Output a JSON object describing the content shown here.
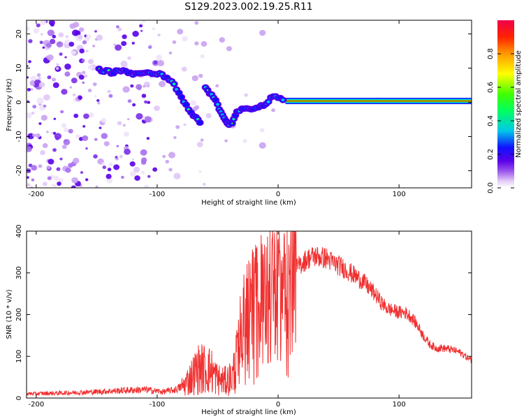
{
  "title": "S129.2023.002.19.25.R11",
  "chart_data": [
    {
      "type": "heatmap",
      "xlabel": "Height of straight line (km)",
      "ylabel": "Frequency (Hz)",
      "xlim": [
        -208,
        160
      ],
      "ylim": [
        -25,
        24
      ],
      "xticks": [
        -200,
        -100,
        0,
        100
      ],
      "yticks": [
        -20,
        -10,
        0,
        10,
        20
      ],
      "colorbar": {
        "label": "Normalized spectral amplitude",
        "range": [
          0,
          1
        ],
        "ticks": [
          0.0,
          0.2,
          0.4,
          0.6,
          0.8
        ],
        "colormap": [
          "#ffffff",
          "#d9b8f6",
          "#9b55ec",
          "#5a00e8",
          "#1010ff",
          "#00c8e8",
          "#00ff60",
          "#40ff00",
          "#ffff00",
          "#ff9900",
          "#ff2200",
          "#f0004a"
        ]
      },
      "ridge": [
        {
          "x": -148,
          "y": 9.6
        },
        {
          "x": -138,
          "y": 8.8
        },
        {
          "x": -128,
          "y": 9.2
        },
        {
          "x": -118,
          "y": 8.2
        },
        {
          "x": -108,
          "y": 8.6
        },
        {
          "x": -98,
          "y": 8.3
        },
        {
          "x": -92,
          "y": 7.4
        },
        {
          "x": -86,
          "y": 5.0
        },
        {
          "x": -80,
          "y": 1.5
        },
        {
          "x": -74,
          "y": -2.0
        },
        {
          "x": -68,
          "y": -4.5
        },
        {
          "x": -63,
          "y": -6.4
        },
        {
          "x": -60,
          "y": 4.4
        },
        {
          "x": -55,
          "y": 2.0
        },
        {
          "x": -50,
          "y": -0.5
        },
        {
          "x": -46,
          "y": -4.0
        },
        {
          "x": -42,
          "y": -6.5
        },
        {
          "x": -38,
          "y": -6.0
        },
        {
          "x": -34,
          "y": -2.5
        },
        {
          "x": -28,
          "y": -2.0
        },
        {
          "x": -20,
          "y": -1.6
        },
        {
          "x": -12,
          "y": -1.0
        },
        {
          "x": -6,
          "y": 1.2
        },
        {
          "x": 0,
          "y": 1.6
        },
        {
          "x": 6,
          "y": 0.4
        },
        {
          "x": 20,
          "y": 0.2
        },
        {
          "x": 50,
          "y": 0.2
        },
        {
          "x": 100,
          "y": 0.2
        },
        {
          "x": 160,
          "y": 0.2
        }
      ]
    },
    {
      "type": "line",
      "xlabel": "Height of straight line (km)",
      "ylabel": "SNR (10 * v/v)",
      "xlim": [
        -208,
        160
      ],
      "ylim": [
        0,
        400
      ],
      "xticks": [
        -200,
        -100,
        0,
        100
      ],
      "yticks": [
        0,
        100,
        200,
        300,
        400
      ],
      "color": "#f03030",
      "series": [
        {
          "x": [
            -208,
            -180,
            -150,
            -130,
            -110,
            -95,
            -85,
            -78,
            -72,
            -66,
            -60,
            -55,
            -50,
            -44,
            -38,
            -34,
            -30,
            -26,
            -22,
            -18,
            -14,
            -10,
            -6,
            -2,
            2,
            6,
            10,
            15,
            20,
            25,
            30,
            35,
            40,
            45,
            50,
            55,
            60,
            65,
            70,
            75,
            80,
            85,
            90,
            95,
            100,
            105,
            110,
            115,
            120,
            125,
            130,
            135,
            140,
            145,
            150,
            155,
            160
          ],
          "y": [
            10,
            12,
            15,
            18,
            20,
            15,
            20,
            30,
            50,
            70,
            70,
            65,
            45,
            40,
            50,
            90,
            150,
            180,
            190,
            200,
            220,
            240,
            240,
            245,
            220,
            230,
            260,
            310,
            325,
            335,
            340,
            338,
            335,
            325,
            318,
            310,
            300,
            290,
            280,
            265,
            250,
            230,
            215,
            210,
            205,
            205,
            195,
            175,
            150,
            130,
            120,
            120,
            118,
            115,
            110,
            100,
            90
          ]
        }
      ]
    }
  ]
}
